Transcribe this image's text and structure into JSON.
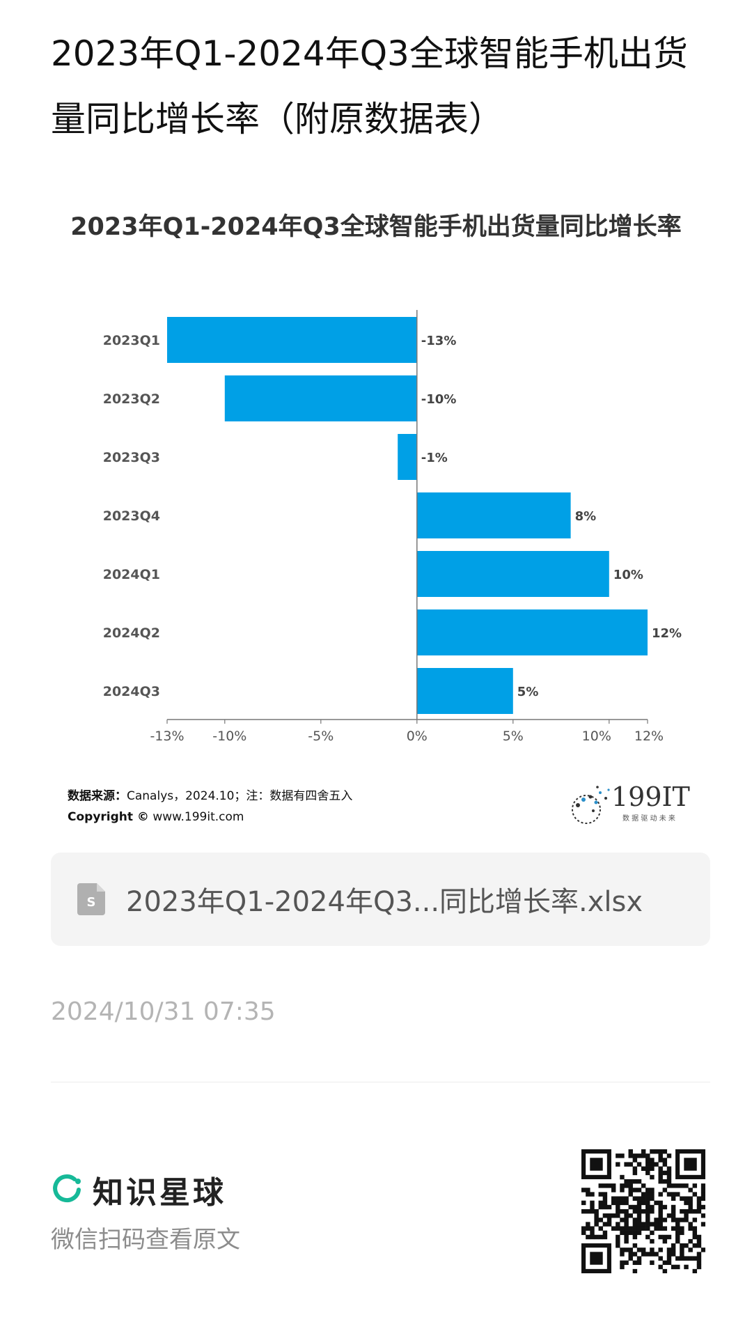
{
  "post": {
    "title": "2023年Q1-2024年Q3全球智能手机出货量同比增长率（附原数据表）",
    "time": "2024/10/31 07:35"
  },
  "chart_data": {
    "type": "bar",
    "orientation": "horizontal",
    "title": "2023年Q1-2024年Q3全球智能手机出货量同比增长率",
    "categories": [
      "2023Q1",
      "2023Q2",
      "2023Q3",
      "2023Q4",
      "2024Q1",
      "2024Q2",
      "2024Q3"
    ],
    "values": [
      -13,
      -10,
      -1,
      8,
      10,
      12,
      5
    ],
    "data_labels": [
      "-13%",
      "-10%",
      "-1%",
      "8%",
      "10%",
      "12%",
      "5%"
    ],
    "xlim": [
      -13,
      12
    ],
    "x_ticks": [
      -13,
      -10,
      -5,
      0,
      5,
      10,
      12
    ],
    "x_tick_labels": [
      "-13%",
      "-10%",
      "-5%",
      "0%",
      "5%",
      "10%",
      "12%"
    ],
    "xlabel": "",
    "ylabel": "",
    "bar_color": "#00a0e6",
    "grid": false,
    "source_label": "数据来源：",
    "source_text": "Canalys，2024.10；注：数据有四舍五入",
    "copyright_label": "Copyright ©",
    "copyright_url": "www.199it.com"
  },
  "watermark": {
    "logo_text": "199IT",
    "tagline": "数 据 驱 动 未 来"
  },
  "attachment": {
    "file_name": "2023年Q1-2024年Q3...同比增长率.xlsx",
    "icon": "spreadsheet-file-icon"
  },
  "footer": {
    "brand_name": "知识星球",
    "brand_icon": "zsxq-ring-logo-icon",
    "hint": "微信扫码查看原文",
    "brand_color": "#16b998"
  }
}
